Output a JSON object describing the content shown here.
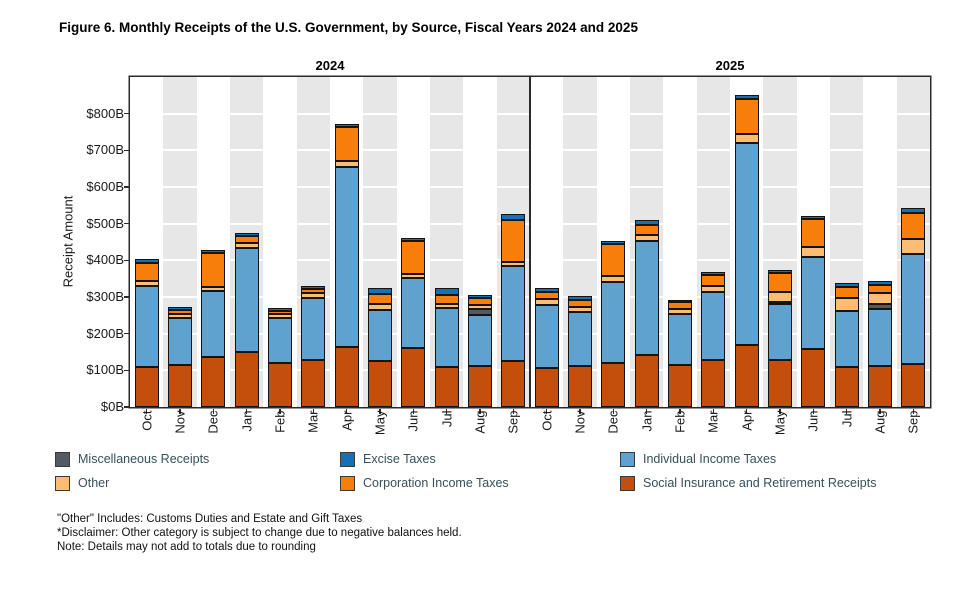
{
  "title": "Figure 6. Monthly Receipts of the U.S. Government, by Source, Fiscal Years 2024 and 2025",
  "y_axis": {
    "label": "Receipt Amount",
    "ticks": [
      {
        "label": "$0B",
        "value": 0
      },
      {
        "label": "$100B",
        "value": 100
      },
      {
        "label": "$200B",
        "value": 200
      },
      {
        "label": "$300B",
        "value": 300
      },
      {
        "label": "$400B",
        "value": 400
      },
      {
        "label": "$500B",
        "value": 500
      },
      {
        "label": "$600B",
        "value": 600
      },
      {
        "label": "$700B",
        "value": 700
      },
      {
        "label": "$800B",
        "value": 800
      }
    ]
  },
  "legend": {
    "columns": [
      {
        "items": [
          {
            "label": "Miscellaneous Receipts",
            "color": "#545A62"
          },
          {
            "label": "Other",
            "color": "#FBBC74"
          }
        ]
      },
      {
        "items": [
          {
            "label": "Excise Taxes",
            "color": "#1471B3"
          },
          {
            "label": "Corporation Income Taxes",
            "color": "#F87E0B"
          }
        ]
      },
      {
        "items": [
          {
            "label": "Individual Income Taxes",
            "color": "#5FA2D0"
          },
          {
            "label": "Social Insurance and Retirement Receipts",
            "color": "#C44F0D"
          }
        ]
      }
    ]
  },
  "footnotes": [
    "\"Other\" Includes: Customs Duties and Estate and Gift Taxes",
    "*Disclaimer: Other category is subject to change due to negative balances held.",
    "Note: Details may not add to totals due to rounding"
  ],
  "chart_data": {
    "type": "bar",
    "stacked": true,
    "units": "billions of dollars",
    "months": [
      "Oct",
      "Nov",
      "Dec",
      "Jan",
      "Feb",
      "Mar",
      "Apr",
      "May",
      "Jun",
      "Jul",
      "Aug",
      "Sep"
    ],
    "ylim": [
      0,
      900
    ],
    "grid_step": 100,
    "stripe_color": "#E7E7E7",
    "panels": [
      {
        "year": "2024",
        "series": [
          {
            "name": "Social Insurance and Retirement Receipts",
            "color": "#C44F0D",
            "values": [
              110,
              115,
              135,
              150,
              120,
              128,
              165,
              125,
              162,
              110,
              112,
              125
            ]
          },
          {
            "name": "Individual Income Taxes",
            "color": "#5FA2D0",
            "values": [
              220,
              128,
              180,
              285,
              122,
              170,
              490,
              138,
              192,
              160,
              140,
              258
            ]
          },
          {
            "name": "Miscellaneous Receipts",
            "color": "#545A62",
            "values": [
              0,
              0,
              0,
              0,
              0,
              0,
              0,
              0,
              0,
              0,
              16,
              0
            ]
          },
          {
            "name": "Other",
            "color": "#FBBC74",
            "values": [
              13,
              12,
              12,
              13,
              11,
              13,
              16,
              15,
              11,
              12,
              12,
              12
            ]
          },
          {
            "name": "Corporation Income Taxes",
            "color": "#F87E0B",
            "values": [
              48,
              10,
              92,
              19,
              8,
              11,
              94,
              28,
              90,
              25,
              18,
              115
            ]
          },
          {
            "name": "Excise Taxes",
            "color": "#1471B3",
            "values": [
              10,
              8,
              8,
              8,
              8,
              8,
              9,
              16,
              9,
              20,
              9,
              16
            ]
          }
        ],
        "totals": [
          401,
          273,
          427,
          475,
          269,
          330,
          774,
          322,
          464,
          327,
          307,
          526
        ]
      },
      {
        "year": "2025",
        "series": [
          {
            "name": "Social Insurance and Retirement Receipts",
            "color": "#C44F0D",
            "values": [
              105,
              112,
              120,
              142,
              115,
              128,
              168,
              127,
              158,
              110,
              112,
              118
            ]
          },
          {
            "name": "Individual Income Taxes",
            "color": "#5FA2D0",
            "values": [
              172,
              146,
              220,
              312,
              140,
              185,
              550,
              152,
              252,
              152,
              155,
              300
            ]
          },
          {
            "name": "Miscellaneous Receipts",
            "color": "#545A62",
            "values": [
              0,
              0,
              0,
              0,
              0,
              0,
              0,
              5,
              0,
              0,
              14,
              0
            ]
          },
          {
            "name": "Other",
            "color": "#FBBC74",
            "values": [
              16,
              14,
              16,
              15,
              14,
              15,
              24,
              26,
              28,
              35,
              30,
              40
            ]
          },
          {
            "name": "Corporation Income Taxes",
            "color": "#F87E0B",
            "values": [
              20,
              18,
              88,
              28,
              19,
              30,
              95,
              52,
              77,
              29,
              22,
              70
            ]
          },
          {
            "name": "Excise Taxes",
            "color": "#1471B3",
            "values": [
              12,
              10,
              8,
              14,
              6,
              8,
              11,
              9,
              9,
              10,
              11,
              14
            ]
          }
        ],
        "totals": [
          325,
          300,
          452,
          511,
          294,
          366,
          848,
          371,
          524,
          336,
          344,
          542
        ]
      }
    ]
  }
}
